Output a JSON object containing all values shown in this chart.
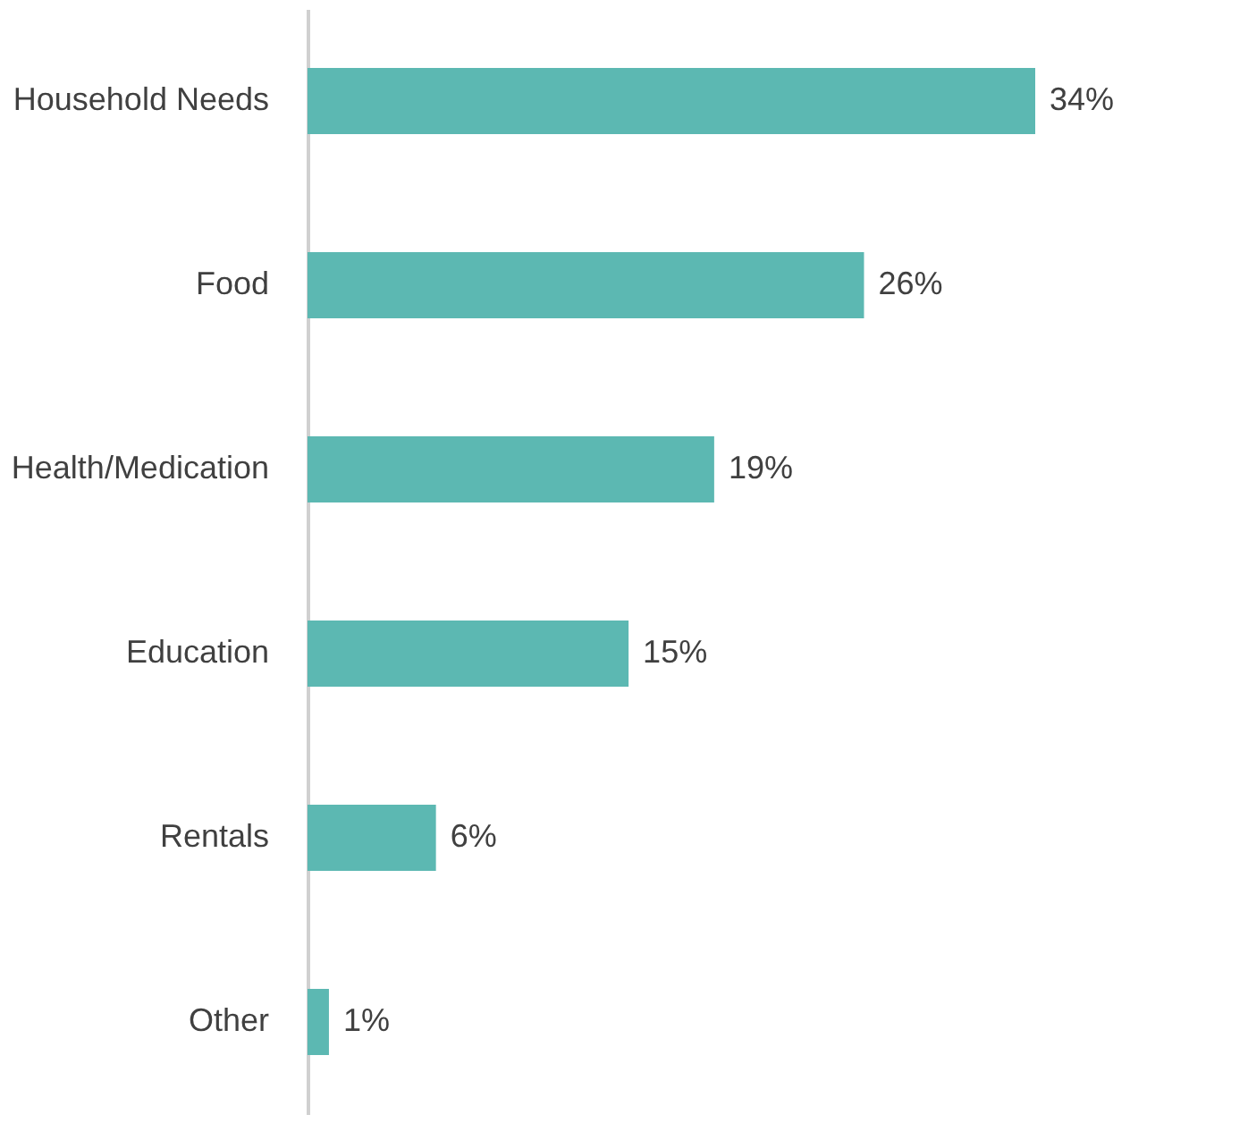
{
  "chart_data": {
    "type": "bar",
    "orientation": "horizontal",
    "categories": [
      "Household Needs",
      "Food",
      "Health/Medication",
      "Education",
      "Rentals",
      "Other"
    ],
    "values": [
      34,
      26,
      19,
      15,
      6,
      1
    ],
    "value_labels": [
      "34%",
      "26%",
      "19%",
      "15%",
      "6%",
      "1%"
    ],
    "color": "#5cb8b2",
    "grid": false,
    "tick_labels": "y"
  }
}
